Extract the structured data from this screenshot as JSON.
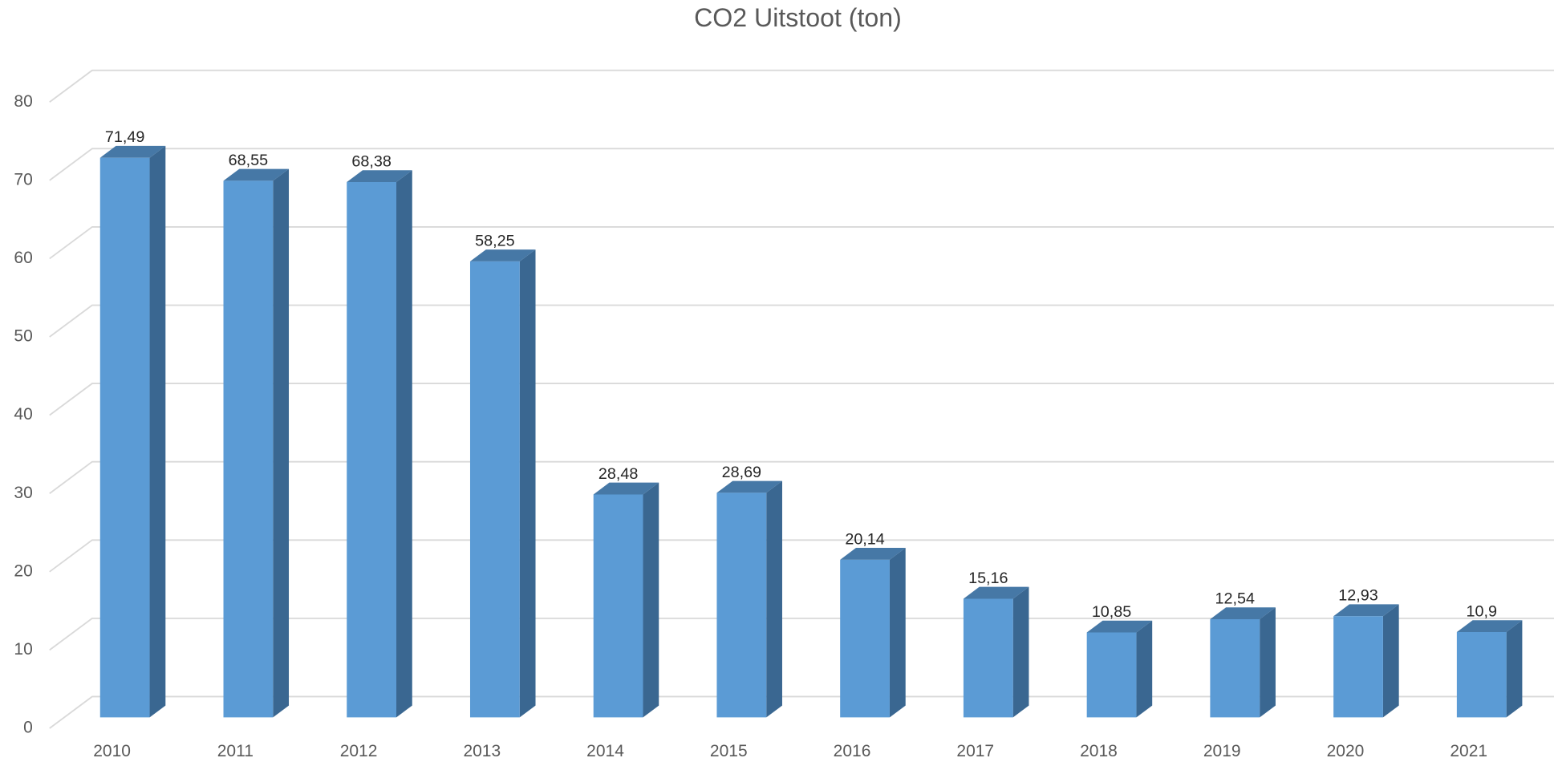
{
  "chart_data": {
    "type": "bar3d",
    "title": "CO2 Uitstoot (ton)",
    "categories": [
      "2010",
      "2011",
      "2012",
      "2013",
      "2014",
      "2015",
      "2016",
      "2017",
      "2018",
      "2019",
      "2020",
      "2021"
    ],
    "values": [
      71.49,
      68.55,
      68.38,
      58.25,
      28.48,
      28.69,
      20.14,
      15.16,
      10.85,
      12.54,
      12.93,
      10.9
    ],
    "value_labels": [
      "71,49",
      "68,55",
      "68,38",
      "58,25",
      "28,48",
      "28,69",
      "20,14",
      "15,16",
      "10,85",
      "12,54",
      "12,93",
      "10,9"
    ],
    "color": "#5b9bd5",
    "ylim": [
      0,
      80
    ],
    "yticks": [
      0,
      10,
      20,
      30,
      40,
      50,
      60,
      70,
      80
    ],
    "grid": true
  }
}
